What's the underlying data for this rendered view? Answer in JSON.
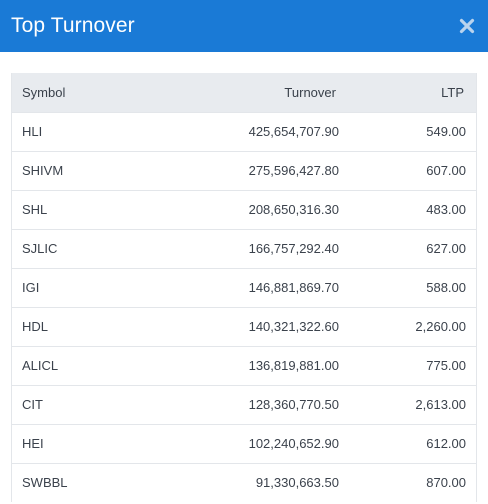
{
  "header": {
    "title": "Top Turnover"
  },
  "table": {
    "columns": [
      "Symbol",
      "Turnover",
      "LTP"
    ],
    "rows": [
      {
        "symbol": "HLI",
        "turnover": "425,654,707.90",
        "ltp": "549.00"
      },
      {
        "symbol": "SHIVM",
        "turnover": "275,596,427.80",
        "ltp": "607.00"
      },
      {
        "symbol": "SHL",
        "turnover": "208,650,316.30",
        "ltp": "483.00"
      },
      {
        "symbol": "SJLIC",
        "turnover": "166,757,292.40",
        "ltp": "627.00"
      },
      {
        "symbol": "IGI",
        "turnover": "146,881,869.70",
        "ltp": "588.00"
      },
      {
        "symbol": "HDL",
        "turnover": "140,321,322.60",
        "ltp": "2,260.00"
      },
      {
        "symbol": "ALICL",
        "turnover": "136,819,881.00",
        "ltp": "775.00"
      },
      {
        "symbol": "CIT",
        "turnover": "128,360,770.50",
        "ltp": "2,613.00"
      },
      {
        "symbol": "HEI",
        "turnover": "102,240,652.90",
        "ltp": "612.00"
      },
      {
        "symbol": "SWBBL",
        "turnover": "91,330,663.50",
        "ltp": "870.00"
      }
    ]
  },
  "colors": {
    "header_bg": "#1a7ad6",
    "table_head_bg": "#e8ebef",
    "border": "#e3e6ea",
    "close_icon": "#b9d3ee"
  },
  "icons": {
    "close": "close-icon"
  }
}
